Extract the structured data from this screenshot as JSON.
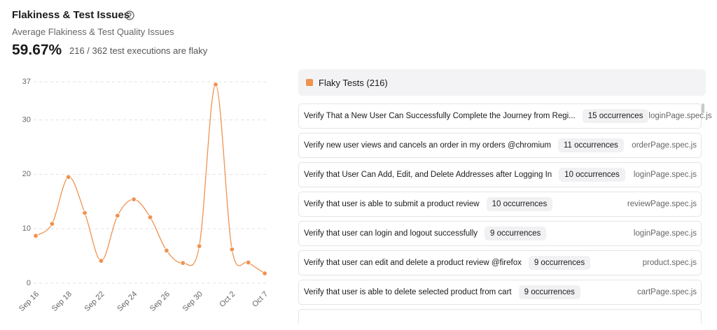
{
  "header": {
    "title": "Flakiness & Test Issues",
    "subtitle": "Average Flakiness & Test Quality Issues",
    "metric": "59.67%",
    "metric_note": "216 / 362 test executions are flaky"
  },
  "chart_data": {
    "type": "line",
    "categories": [
      "Sep 16",
      null,
      "Sep 18",
      null,
      "Sep 22",
      null,
      "Sep 24",
      null,
      "Sep 26",
      null,
      "Sep 30",
      null,
      "Oct 2",
      null,
      "Oct 7"
    ],
    "values": [
      8.7,
      10.9,
      19.5,
      12.9,
      4.1,
      12.4,
      15.4,
      12.1,
      6.0,
      3.7,
      6.8,
      36.5,
      6.2,
      3.8,
      1.8
    ],
    "color": "#f0924f",
    "ylim": [
      0,
      37
    ],
    "yticks": [
      0,
      10,
      20,
      30,
      37
    ],
    "grid": true
  },
  "flaky_tests": {
    "title": "Flaky Tests (216)",
    "items": [
      {
        "name": "Verify That a New User Can Successfully Complete the Journey from Regi...",
        "occurrences": "15 occurrences",
        "file": "loginPage.spec.js"
      },
      {
        "name": "Verify new user views and cancels an order in my orders @chromium",
        "occurrences": "11 occurrences",
        "file": "orderPage.spec.js"
      },
      {
        "name": "Verify that User Can Add, Edit, and Delete Addresses after Logging In",
        "occurrences": "10 occurrences",
        "file": "loginPage.spec.js"
      },
      {
        "name": "Verify that user is able to submit a product review",
        "occurrences": "10 occurrences",
        "file": "reviewPage.spec.js"
      },
      {
        "name": "Verify that user can login and logout successfully",
        "occurrences": "9 occurrences",
        "file": "loginPage.spec.js"
      },
      {
        "name": "Verify that user can edit and delete a product review @firefox",
        "occurrences": "9 occurrences",
        "file": "product.spec.js"
      },
      {
        "name": "Verify that user is able to delete selected product from cart",
        "occurrences": "9 occurrences",
        "file": "cartPage.spec.js"
      }
    ]
  }
}
